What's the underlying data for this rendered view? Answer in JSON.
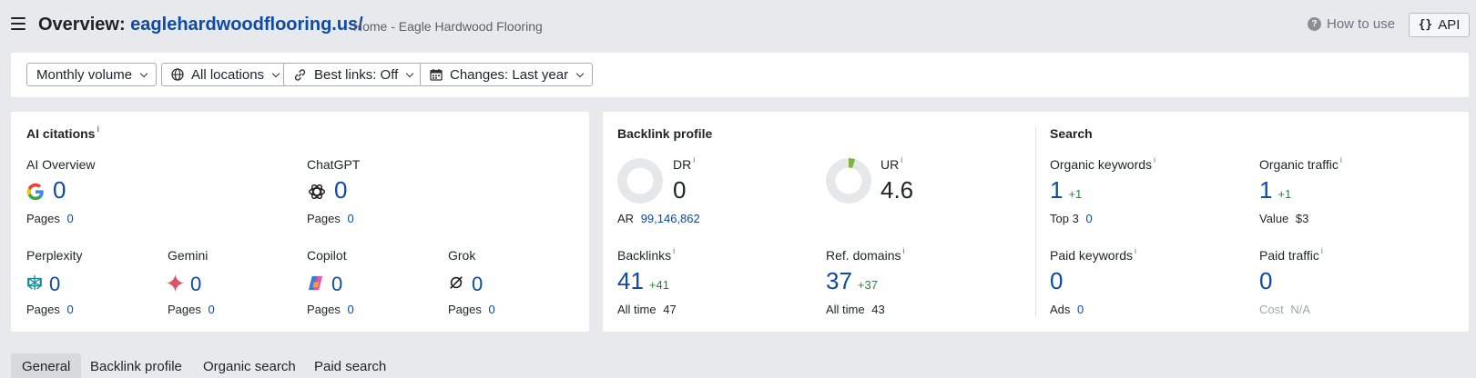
{
  "header": {
    "title_prefix": "Overview: ",
    "domain": "eaglehardwoodflooring.us/",
    "page_title": "Home - Eagle Hardwood Flooring",
    "how_to_use": "How to use",
    "api_label": "API"
  },
  "filters": {
    "volume": "Monthly volume",
    "locations": "All locations",
    "best_links": "Best links: Off",
    "changes": "Changes: Last year"
  },
  "ai_citations": {
    "title": "AI citations",
    "info": "i",
    "pages_label": "Pages",
    "items": [
      {
        "name": "AI Overview",
        "value": "0",
        "pages": "0"
      },
      {
        "name": "ChatGPT",
        "value": "0",
        "pages": "0"
      },
      {
        "name": "Perplexity",
        "value": "0",
        "pages": "0"
      },
      {
        "name": "Gemini",
        "value": "0",
        "pages": "0"
      },
      {
        "name": "Copilot",
        "value": "0",
        "pages": "0"
      },
      {
        "name": "Grok",
        "value": "0",
        "pages": "0"
      }
    ]
  },
  "backlink_profile": {
    "title": "Backlink profile",
    "dr": {
      "label": "DR",
      "value": "0",
      "ar_label": "AR",
      "ar_value": "99,146,862",
      "fill": 0
    },
    "ur": {
      "label": "UR",
      "value": "4.6",
      "fill": 0.046
    },
    "backlinks": {
      "label": "Backlinks",
      "value": "41",
      "delta": "+41",
      "all_time_label": "All time",
      "all_time_value": "47"
    },
    "ref_domains": {
      "label": "Ref. domains",
      "value": "37",
      "delta": "+37",
      "all_time_label": "All time",
      "all_time_value": "43"
    }
  },
  "search": {
    "title": "Search",
    "organic_keywords": {
      "label": "Organic keywords",
      "value": "1",
      "delta": "+1",
      "sub_label": "Top 3",
      "sub_value": "0"
    },
    "organic_traffic": {
      "label": "Organic traffic",
      "value": "1",
      "delta": "+1",
      "sub_label": "Value",
      "sub_value": "$3"
    },
    "paid_keywords": {
      "label": "Paid keywords",
      "value": "0",
      "sub_label": "Ads",
      "sub_value": "0"
    },
    "paid_traffic": {
      "label": "Paid traffic",
      "value": "0",
      "sub_label": "Cost",
      "sub_value": "N/A"
    }
  },
  "tabs": [
    {
      "label": "General",
      "active": true
    },
    {
      "label": "Backlink profile",
      "active": false
    },
    {
      "label": "Organic search",
      "active": false
    },
    {
      "label": "Paid search",
      "active": false
    }
  ],
  "colors": {
    "accent_blue": "#0f4aa3",
    "positive_green": "#1f8a3b",
    "ur_fill": "#7cb342",
    "donut_track": "#e6e7e9"
  }
}
